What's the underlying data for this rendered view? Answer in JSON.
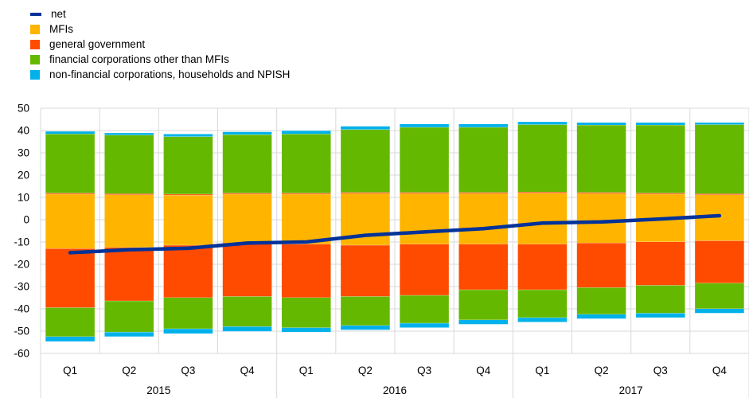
{
  "chart_data": {
    "type": "bar",
    "stacked": true,
    "categories": [
      "Q1",
      "Q2",
      "Q3",
      "Q4",
      "Q1",
      "Q2",
      "Q3",
      "Q4",
      "Q1",
      "Q2",
      "Q3",
      "Q4"
    ],
    "year_groups": [
      {
        "label": "2015",
        "quarters": 4
      },
      {
        "label": "2016",
        "quarters": 4
      },
      {
        "label": "2017",
        "quarters": 4
      }
    ],
    "ylim": [
      -60,
      50
    ],
    "yticks": [
      -60,
      -50,
      -40,
      -30,
      -20,
      -10,
      0,
      10,
      20,
      30,
      40,
      50
    ],
    "grid": true,
    "legend_position": "top-left",
    "series": [
      {
        "name": "MFIs",
        "color": "#ffb400",
        "positive": [
          11.5,
          11.2,
          11.0,
          11.5,
          11.5,
          11.8,
          11.8,
          11.8,
          12.0,
          11.8,
          11.5,
          11.2
        ],
        "negative": [
          -13,
          -12.5,
          -11.5,
          -11,
          -11,
          -11.5,
          -11,
          -11,
          -11,
          -10.5,
          -10,
          -9.5
        ]
      },
      {
        "name": "general government",
        "color": "#ff4b00",
        "positive": [
          0.5,
          0.5,
          0.5,
          0.5,
          0.5,
          0.5,
          0.5,
          0.5,
          0.5,
          0.5,
          0.5,
          0.5
        ],
        "negative": [
          -26.5,
          -24,
          -23.5,
          -23.5,
          -24,
          -23,
          -23,
          -20.5,
          -20.5,
          -20,
          -19.5,
          -19
        ]
      },
      {
        "name": "financial corporations other than MFIs",
        "color": "#65b800",
        "positive": [
          26.5,
          26.3,
          25.8,
          26.2,
          26.5,
          28.2,
          29.2,
          29.2,
          30.2,
          30.2,
          30.5,
          31.0
        ],
        "negative": [
          -13,
          -14,
          -14,
          -13.5,
          -13.5,
          -13,
          -12.5,
          -13.5,
          -12.5,
          -12,
          -12.5,
          -11.5
        ]
      },
      {
        "name": "non-financial corporations, households and NPISH",
        "color": "#00b1ea",
        "positive": [
          1.2,
          1.0,
          1.2,
          1.3,
          1.5,
          1.5,
          1.5,
          1.5,
          1.3,
          1.2,
          1.2,
          1.0
        ],
        "negative": [
          -2.2,
          -2,
          -2.2,
          -2.2,
          -2,
          -2,
          -2,
          -2,
          -2,
          -2,
          -2,
          -2
        ]
      }
    ],
    "line": {
      "name": "net",
      "color": "#003299",
      "values": [
        -14.8,
        -13.5,
        -12.8,
        -10.5,
        -10,
        -7,
        -5.5,
        -4,
        -1.5,
        -1,
        0.3,
        1.8
      ]
    }
  }
}
